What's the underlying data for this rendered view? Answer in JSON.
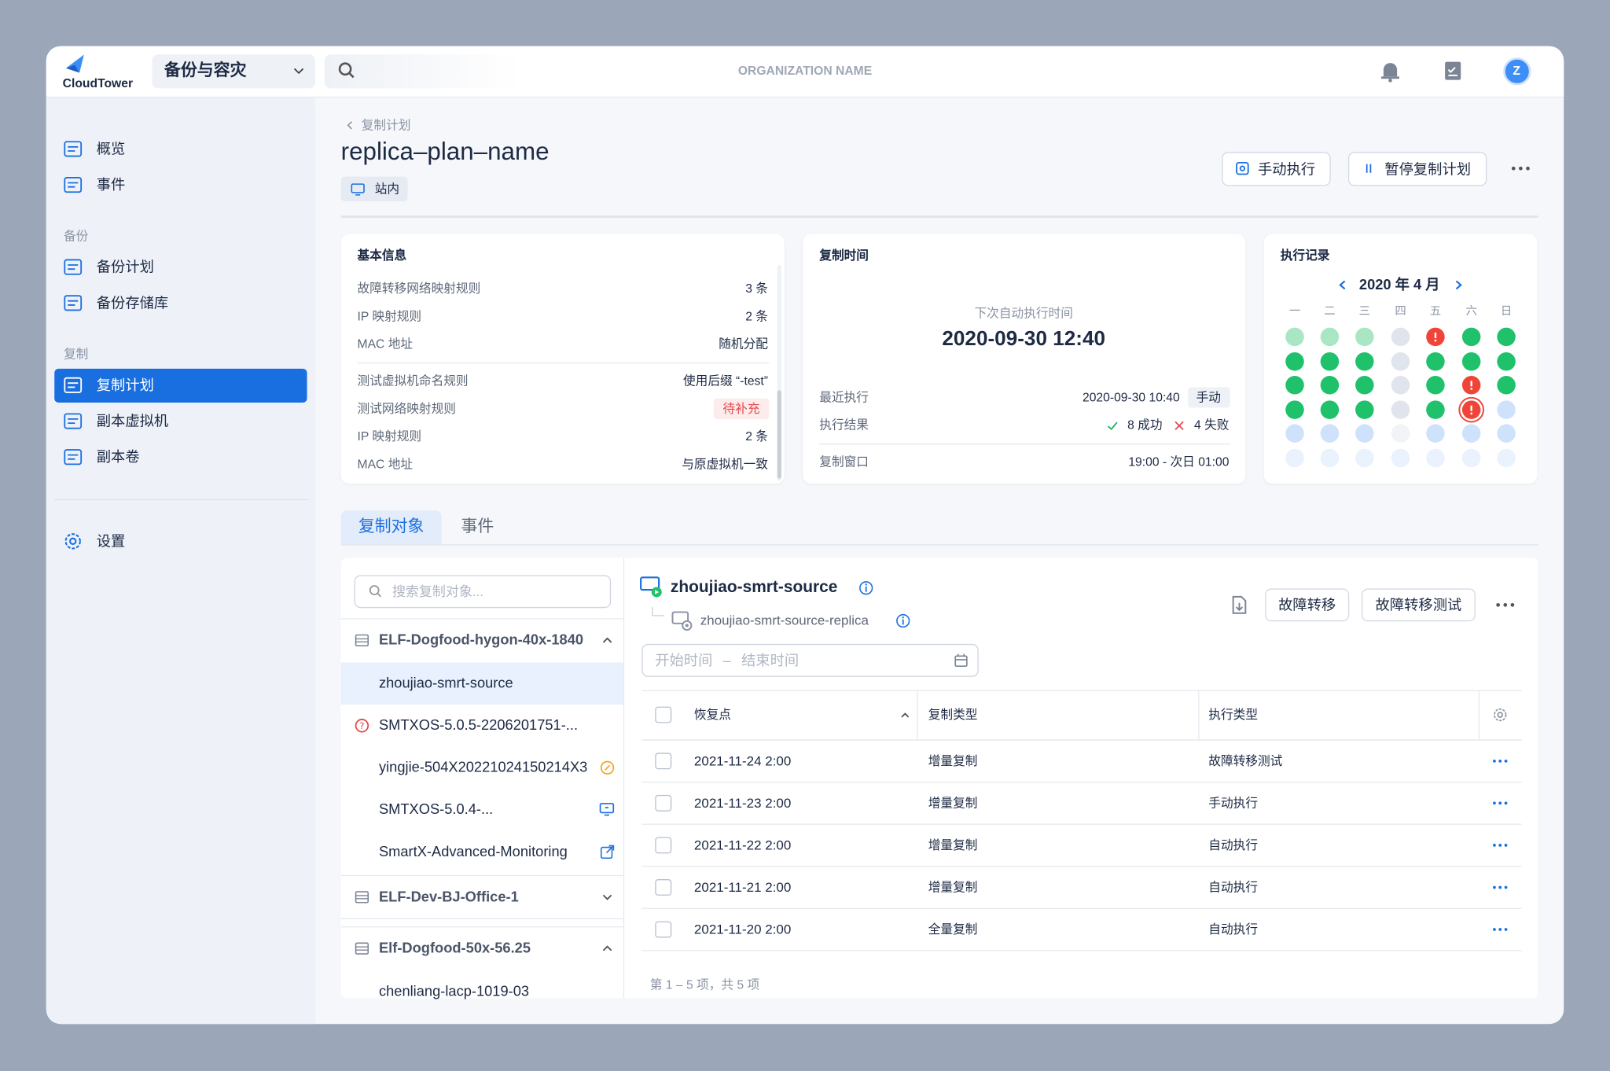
{
  "header": {
    "logo": "CloudTower",
    "product": "备份与容灾",
    "organization": "ORGANIZATION NAME",
    "avatar": "Z"
  },
  "sidebar": {
    "top_items": [
      "概览",
      "事件"
    ],
    "groups": [
      {
        "title": "备份",
        "items": [
          "备份计划",
          "备份存储库"
        ]
      },
      {
        "title": "复制",
        "items": [
          "复制计划",
          "副本虚拟机",
          "副本卷"
        ]
      }
    ],
    "active": [
      1,
      0
    ],
    "settings": "设置"
  },
  "plan": {
    "breadcrumb": "复制计划",
    "name": "replica–plan–name",
    "tag": "站内",
    "actions": [
      "手动执行",
      "暂停复制计划"
    ]
  },
  "basic_info": {
    "title": "基本信息",
    "groups": [
      [
        {
          "label": "故障转移网络映射规则",
          "value": "3 条"
        },
        {
          "label": "IP 映射规则",
          "value": "2 条"
        },
        {
          "label": "MAC 地址",
          "value": "随机分配"
        }
      ],
      [
        {
          "label": "测试虚拟机命名规则",
          "value": "使用后缀 “-test”"
        },
        {
          "label": "测试网络映射规则",
          "value": "待补充",
          "status": "pending"
        },
        {
          "label": "IP 映射规则",
          "value": "2 条"
        },
        {
          "label": "MAC 地址",
          "value": "与原虚拟机一致"
        }
      ]
    ]
  },
  "replication_time": {
    "title": "复制时间",
    "next_label": "下次自动执行时间",
    "next_time": "2020-09-30 12:40",
    "last_label": "最近执行",
    "last_time": "2020-09-30 10:40",
    "last_mode": "手动",
    "result_label": "执行结果",
    "success": "8 成功",
    "failure": "4 失败",
    "window_label": "复制窗口",
    "window": "19:00 - 次日 01:00"
  },
  "execution_record": {
    "title": "执行记录",
    "month": "2020 年 4 月",
    "weekdays": [
      "一",
      "二",
      "三",
      "四",
      "五",
      "六",
      "日"
    ],
    "days": [
      [
        "success-light",
        "success-light",
        "success-light",
        "empty",
        "error",
        "success",
        "success"
      ],
      [
        "success",
        "success",
        "success",
        "empty",
        "success",
        "success",
        "success"
      ],
      [
        "success",
        "success",
        "success",
        "empty",
        "success",
        "error",
        "success"
      ],
      [
        "success",
        "success",
        "success",
        "empty",
        "success",
        "error-current",
        "planned"
      ],
      [
        "planned",
        "planned",
        "planned",
        "empty-light",
        "planned",
        "planned",
        "planned"
      ],
      [
        "planned-light",
        "planned-light",
        "planned-light",
        "planned-light",
        "planned-light",
        "planned-light",
        "planned-light"
      ]
    ]
  },
  "tabs": {
    "items": [
      "复制对象",
      "事件"
    ],
    "active": 0
  },
  "objects": {
    "search_placeholder": "搜索复制对象...",
    "groups": [
      {
        "name": "ELF-Dogfood-hygon-40x-1840",
        "expanded": true,
        "children": [
          {
            "name": "zhoujiao-smrt-source",
            "icon": "none"
          },
          {
            "name": "SMTXOS-5.0.5-2206201751-...",
            "icon": "error"
          },
          {
            "name": "yingjie-504X20221024150214X3",
            "icon": "warning"
          },
          {
            "name": "SMTXOS-5.0.4-...",
            "icon": "console"
          },
          {
            "name": "SmartX-Advanced-Monitoring",
            "icon": "link"
          }
        ]
      },
      {
        "name": "ELF-Dev-BJ-Office-1",
        "expanded": false,
        "children": []
      },
      {
        "name": "Elf-Dogfood-50x-56.25",
        "expanded": true,
        "children": [
          {
            "name": "chenliang-lacp-1019-03",
            "icon": "none"
          }
        ]
      }
    ],
    "selected": [
      0,
      0
    ]
  },
  "detail": {
    "name": "zhoujiao-smrt-source",
    "replica": "zhoujiao-smrt-source-replica",
    "actions": [
      "故障转移",
      "故障转移测试"
    ],
    "date_range": {
      "start": "开始时间",
      "separator": "–",
      "end": "结束时间"
    },
    "table": {
      "columns": [
        "恢复点",
        "复制类型",
        "执行类型"
      ],
      "rows": [
        [
          "2021-11-24 2:00",
          "增量复制",
          "故障转移测试"
        ],
        [
          "2021-11-23 2:00",
          "增量复制",
          "手动执行"
        ],
        [
          "2021-11-22 2:00",
          "增量复制",
          "自动执行"
        ],
        [
          "2021-11-21 2:00",
          "增量复制",
          "自动执行"
        ],
        [
          "2021-11-20 2:00",
          "全量复制",
          "自动执行"
        ]
      ],
      "pagination": "第 1 – 5 项，共 5 项"
    }
  }
}
